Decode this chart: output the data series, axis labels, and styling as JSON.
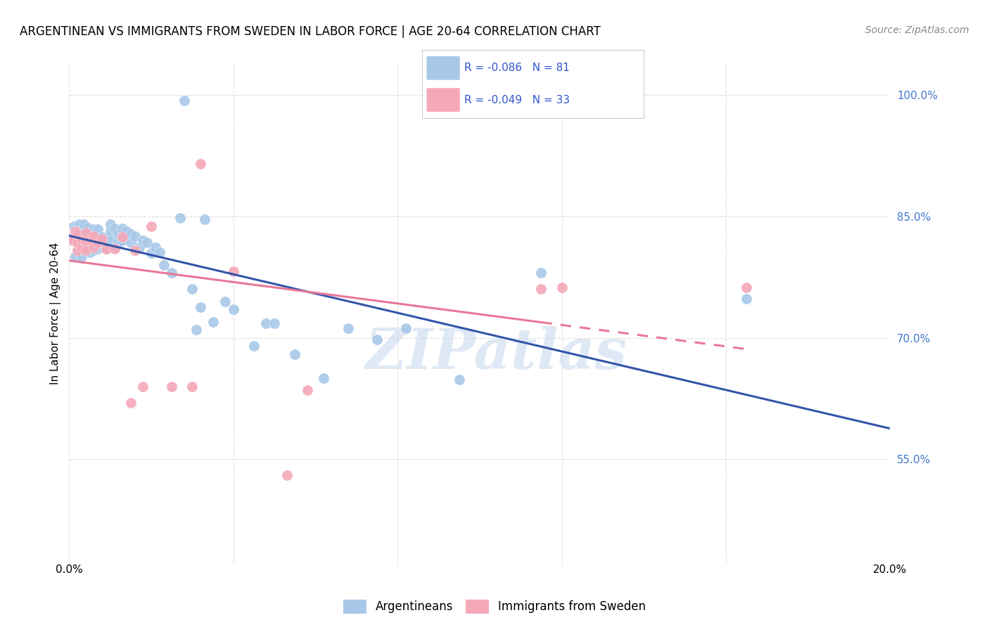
{
  "title": "ARGENTINEAN VS IMMIGRANTS FROM SWEDEN IN LABOR FORCE | AGE 20-64 CORRELATION CHART",
  "source": "Source: ZipAtlas.com",
  "ylabel": "In Labor Force | Age 20-64",
  "xlim": [
    0.0,
    0.2
  ],
  "ylim": [
    0.42,
    1.04
  ],
  "watermark": "ZIPatlas",
  "blue_R": "-0.086",
  "blue_N": "81",
  "pink_R": "-0.049",
  "pink_N": "33",
  "blue_color": "#A8C8E8",
  "pink_color": "#F4A8B8",
  "blue_line_color": "#3355AA",
  "pink_line_color": "#E87898",
  "legend_label_blue": "Argentineans",
  "legend_label_pink": "Immigrants from Sweden",
  "ytick_vals": [
    0.55,
    0.7,
    0.85,
    1.0
  ],
  "ytick_labels": [
    "55.0%",
    "70.0%",
    "85.0%",
    "100.0%"
  ],
  "xtick_vals": [
    0.0,
    0.04,
    0.08,
    0.12,
    0.16,
    0.2
  ],
  "grid_color": "#DDDDDD",
  "background_color": "#FFFFFF",
  "title_fontsize": 12,
  "source_fontsize": 10,
  "tick_fontsize": 11,
  "ylabel_fontsize": 11,
  "blue_scatter_x": [
    0.0008,
    0.001,
    0.0012,
    0.0015,
    0.0015,
    0.002,
    0.002,
    0.002,
    0.002,
    0.0025,
    0.0025,
    0.003,
    0.003,
    0.003,
    0.003,
    0.003,
    0.0035,
    0.004,
    0.004,
    0.004,
    0.004,
    0.0045,
    0.005,
    0.005,
    0.005,
    0.005,
    0.006,
    0.006,
    0.006,
    0.006,
    0.007,
    0.007,
    0.007,
    0.007,
    0.008,
    0.008,
    0.008,
    0.009,
    0.009,
    0.009,
    0.01,
    0.01,
    0.01,
    0.011,
    0.011,
    0.012,
    0.012,
    0.013,
    0.013,
    0.014,
    0.015,
    0.015,
    0.016,
    0.017,
    0.018,
    0.019,
    0.02,
    0.021,
    0.022,
    0.023,
    0.025,
    0.027,
    0.028,
    0.03,
    0.031,
    0.032,
    0.033,
    0.035,
    0.038,
    0.04,
    0.045,
    0.048,
    0.05,
    0.055,
    0.062,
    0.068,
    0.075,
    0.082,
    0.095,
    0.115,
    0.165
  ],
  "blue_scatter_y": [
    0.82,
    0.822,
    0.838,
    0.8,
    0.826,
    0.82,
    0.825,
    0.833,
    0.835,
    0.838,
    0.84,
    0.8,
    0.81,
    0.822,
    0.828,
    0.833,
    0.84,
    0.81,
    0.818,
    0.824,
    0.832,
    0.836,
    0.806,
    0.814,
    0.82,
    0.83,
    0.808,
    0.816,
    0.824,
    0.834,
    0.81,
    0.82,
    0.826,
    0.834,
    0.812,
    0.818,
    0.825,
    0.81,
    0.818,
    0.824,
    0.84,
    0.832,
    0.82,
    0.835,
    0.812,
    0.828,
    0.818,
    0.835,
    0.82,
    0.832,
    0.828,
    0.818,
    0.826,
    0.812,
    0.82,
    0.818,
    0.805,
    0.812,
    0.806,
    0.79,
    0.78,
    0.848,
    0.993,
    0.76,
    0.71,
    0.738,
    0.846,
    0.72,
    0.745,
    0.735,
    0.69,
    0.718,
    0.718,
    0.68,
    0.65,
    0.712,
    0.698,
    0.712,
    0.648,
    0.78,
    0.748
  ],
  "pink_scatter_x": [
    0.0008,
    0.001,
    0.0012,
    0.0015,
    0.002,
    0.002,
    0.002,
    0.003,
    0.003,
    0.004,
    0.004,
    0.004,
    0.005,
    0.006,
    0.006,
    0.007,
    0.008,
    0.009,
    0.011,
    0.013,
    0.015,
    0.016,
    0.018,
    0.02,
    0.025,
    0.03,
    0.032,
    0.04,
    0.053,
    0.058,
    0.115,
    0.12,
    0.165
  ],
  "pink_scatter_y": [
    0.82,
    0.824,
    0.82,
    0.832,
    0.808,
    0.818,
    0.828,
    0.812,
    0.822,
    0.808,
    0.82,
    0.83,
    0.82,
    0.812,
    0.826,
    0.818,
    0.822,
    0.81,
    0.81,
    0.825,
    0.62,
    0.808,
    0.64,
    0.838,
    0.64,
    0.64,
    0.915,
    0.782,
    0.53,
    0.635,
    0.76,
    0.762,
    0.762
  ]
}
